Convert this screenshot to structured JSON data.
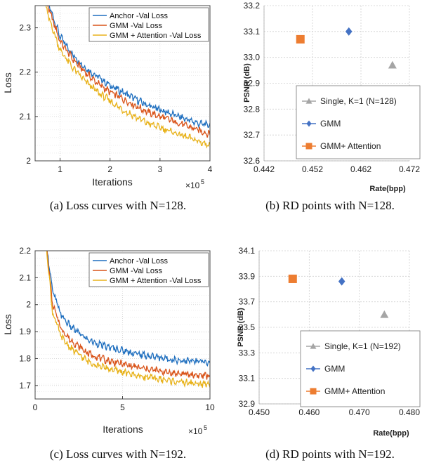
{
  "chart_data": [
    {
      "type": "line",
      "caption": "(a)  Loss curves with N=128.",
      "xlabel": "Iterations",
      "ylabel": "Loss",
      "x_multiplier": "×10",
      "x_exponent": "5",
      "xlim": [
        0.5,
        4
      ],
      "ylim": [
        2,
        2.35
      ],
      "xticks": [
        1,
        2,
        3,
        4
      ],
      "yticks": [
        2,
        2.1,
        2.2,
        2.3
      ],
      "ytick_labels": [
        "2",
        "2.1",
        "2.2",
        "2.3"
      ],
      "legend_position": "top-right",
      "series": [
        {
          "name": "Anchor -Val Loss",
          "color": "#1f6fbf",
          "points": [
            [
              0.55,
              2.45
            ],
            [
              0.75,
              2.36
            ],
            [
              1.0,
              2.28
            ],
            [
              1.25,
              2.24
            ],
            [
              1.5,
              2.21
            ],
            [
              1.75,
              2.19
            ],
            [
              2.0,
              2.17
            ],
            [
              2.25,
              2.155
            ],
            [
              2.5,
              2.14
            ],
            [
              2.75,
              2.125
            ],
            [
              3.0,
              2.115
            ],
            [
              3.25,
              2.105
            ],
            [
              3.5,
              2.095
            ],
            [
              3.75,
              2.085
            ],
            [
              4.0,
              2.08
            ]
          ]
        },
        {
          "name": "GMM -Val Loss",
          "color": "#d95319",
          "points": [
            [
              0.55,
              2.45
            ],
            [
              0.75,
              2.35
            ],
            [
              1.0,
              2.27
            ],
            [
              1.25,
              2.23
            ],
            [
              1.5,
              2.2
            ],
            [
              1.75,
              2.175
            ],
            [
              2.0,
              2.155
            ],
            [
              2.25,
              2.14
            ],
            [
              2.5,
              2.125
            ],
            [
              2.75,
              2.11
            ],
            [
              3.0,
              2.1
            ],
            [
              3.25,
              2.09
            ],
            [
              3.5,
              2.08
            ],
            [
              3.75,
              2.07
            ],
            [
              4.0,
              2.06
            ]
          ]
        },
        {
          "name": "GMM + Attention -Val Loss",
          "color": "#e8b21a",
          "points": [
            [
              0.55,
              2.45
            ],
            [
              0.75,
              2.33
            ],
            [
              1.0,
              2.25
            ],
            [
              1.25,
              2.21
            ],
            [
              1.5,
              2.18
            ],
            [
              1.75,
              2.155
            ],
            [
              2.0,
              2.135
            ],
            [
              2.25,
              2.115
            ],
            [
              2.5,
              2.1
            ],
            [
              2.75,
              2.085
            ],
            [
              3.0,
              2.075
            ],
            [
              3.25,
              2.065
            ],
            [
              3.5,
              2.055
            ],
            [
              3.75,
              2.045
            ],
            [
              4.0,
              2.035
            ]
          ]
        }
      ]
    },
    {
      "type": "scatter",
      "caption": "(b)  RD points with N=128.",
      "xlabel": "Rate(bpp)",
      "ylabel": "PSNR (dB)",
      "xlim": [
        0.442,
        0.472
      ],
      "ylim": [
        32.6,
        33.2
      ],
      "xticks": [
        0.442,
        0.452,
        0.462,
        0.472
      ],
      "xtick_labels": [
        "0.442",
        "0.452",
        "0.462",
        "0.472"
      ],
      "yticks": [
        32.6,
        32.7,
        32.8,
        32.9,
        33.0,
        33.1,
        33.2
      ],
      "ytick_labels": [
        "32.6",
        "32.7",
        "32.8",
        "32.9",
        "33.0",
        "33.1",
        "33.2"
      ],
      "grid": true,
      "legend_position": "bottom-right",
      "series": [
        {
          "name": "Single, K=1 (N=128)",
          "marker": "triangle",
          "color": "#a5a5a5",
          "x": 0.4685,
          "y": 32.97
        },
        {
          "name": "GMM",
          "marker": "diamond",
          "color": "#4472c4",
          "x": 0.4595,
          "y": 33.1
        },
        {
          "name": "GMM+ Attention",
          "marker": "square",
          "color": "#ed7d31",
          "x": 0.4495,
          "y": 33.07
        }
      ]
    },
    {
      "type": "line",
      "caption": "(c)  Loss curves with N=192.",
      "xlabel": "Iterations",
      "ylabel": "Loss",
      "x_multiplier": "×10",
      "x_exponent": "5",
      "xlim": [
        0,
        10
      ],
      "ylim": [
        1.65,
        2.2
      ],
      "xticks": [
        0,
        5,
        10
      ],
      "yticks": [
        1.7,
        1.8,
        1.9,
        2,
        2.1,
        2.2
      ],
      "ytick_labels": [
        "1.7",
        "1.8",
        "1.9",
        "2",
        "2.1",
        "2.2"
      ],
      "legend_position": "top-right",
      "series": [
        {
          "name": "Anchor -Val Loss",
          "color": "#1f6fbf",
          "points": [
            [
              0.6,
              2.25
            ],
            [
              1.0,
              2.05
            ],
            [
              1.5,
              1.96
            ],
            [
              2.0,
              1.92
            ],
            [
              3.0,
              1.87
            ],
            [
              4.0,
              1.845
            ],
            [
              5.0,
              1.83
            ],
            [
              6.0,
              1.815
            ],
            [
              7.0,
              1.805
            ],
            [
              8.0,
              1.795
            ],
            [
              9.0,
              1.79
            ],
            [
              10.0,
              1.785
            ]
          ]
        },
        {
          "name": "GMM -Val Loss",
          "color": "#d95319",
          "points": [
            [
              0.6,
              2.25
            ],
            [
              1.0,
              2.0
            ],
            [
              1.5,
              1.91
            ],
            [
              2.0,
              1.87
            ],
            [
              3.0,
              1.82
            ],
            [
              4.0,
              1.795
            ],
            [
              5.0,
              1.78
            ],
            [
              6.0,
              1.765
            ],
            [
              7.0,
              1.755
            ],
            [
              8.0,
              1.745
            ],
            [
              9.0,
              1.74
            ],
            [
              10.0,
              1.735
            ]
          ]
        },
        {
          "name": "GMM + Attention -Val Loss",
          "color": "#e8b21a",
          "points": [
            [
              0.6,
              2.25
            ],
            [
              1.0,
              1.97
            ],
            [
              1.5,
              1.88
            ],
            [
              2.0,
              1.84
            ],
            [
              3.0,
              1.79
            ],
            [
              4.0,
              1.765
            ],
            [
              5.0,
              1.75
            ],
            [
              6.0,
              1.735
            ],
            [
              7.0,
              1.725
            ],
            [
              8.0,
              1.715
            ],
            [
              9.0,
              1.708
            ],
            [
              10.0,
              1.703
            ]
          ]
        }
      ]
    },
    {
      "type": "scatter",
      "caption": "(d)  RD points with N=192.",
      "xlabel": "Rate(bpp)",
      "ylabel": "PSNR (dB)",
      "xlim": [
        0.45,
        0.48
      ],
      "ylim": [
        32.9,
        34.1
      ],
      "xticks": [
        0.45,
        0.46,
        0.47,
        0.48
      ],
      "xtick_labels": [
        "0.450",
        "0.460",
        "0.470",
        "0.480"
      ],
      "yticks": [
        32.9,
        33.1,
        33.3,
        33.5,
        33.7,
        33.9,
        34.1
      ],
      "ytick_labels": [
        "32.9",
        "33.1",
        "33.3",
        "33.5",
        "33.7",
        "33.9",
        "34.1"
      ],
      "grid": true,
      "legend_position": "bottom-right",
      "series": [
        {
          "name": "Single, K=1 (N=192)",
          "marker": "triangle",
          "color": "#a5a5a5",
          "x": 0.475,
          "y": 33.6
        },
        {
          "name": "GMM",
          "marker": "diamond",
          "color": "#4472c4",
          "x": 0.4665,
          "y": 33.86
        },
        {
          "name": "GMM+ Attention",
          "marker": "square",
          "color": "#ed7d31",
          "x": 0.4567,
          "y": 33.88
        }
      ]
    }
  ]
}
